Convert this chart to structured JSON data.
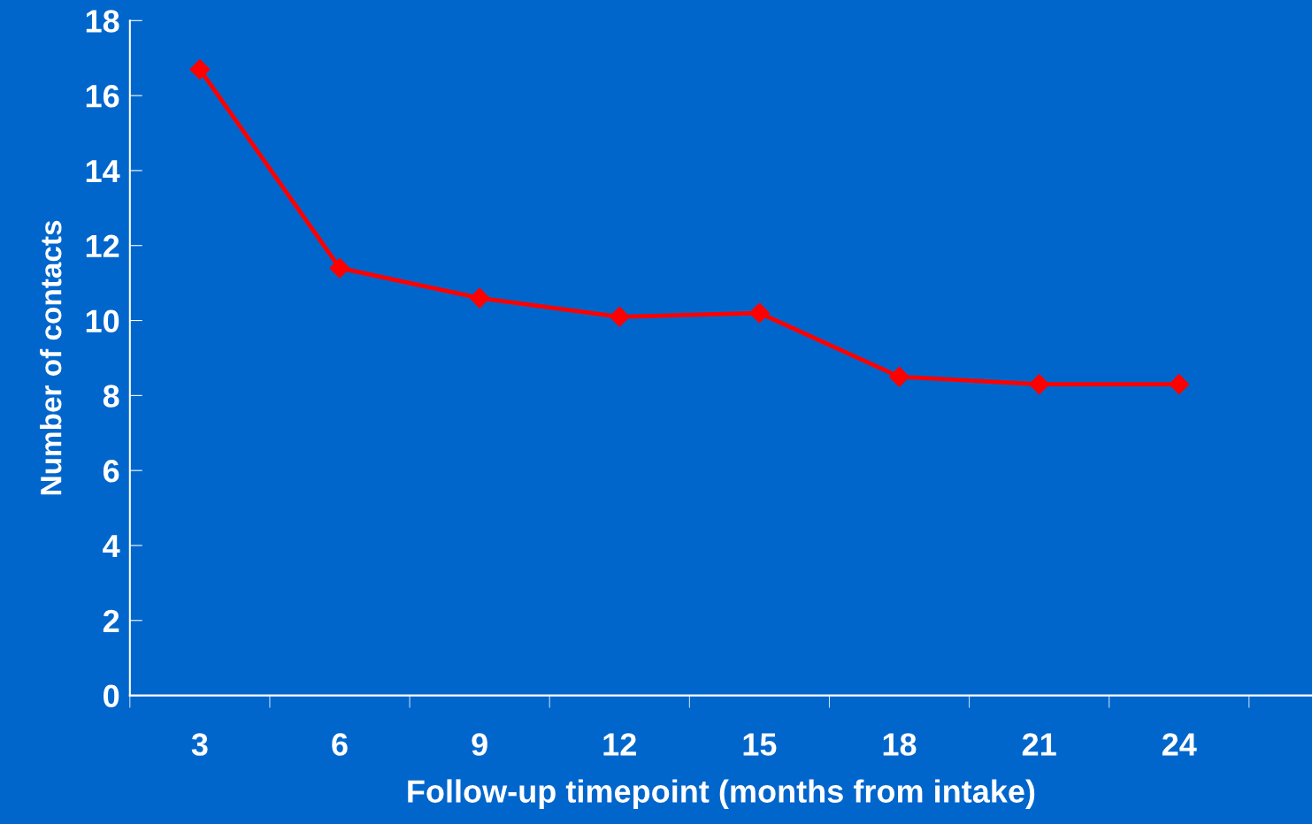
{
  "chart_data": {
    "type": "line",
    "xlabel": "Follow-up timepoint (months from intake)",
    "ylabel": "Number of contacts",
    "categories": [
      "3",
      "6",
      "9",
      "12",
      "15",
      "18",
      "21",
      "24"
    ],
    "series": [
      {
        "color": "#ff0000",
        "values": [
          16.7,
          11.4,
          10.6,
          10.1,
          10.2,
          8.5,
          8.3,
          8.3
        ]
      }
    ],
    "ylim": [
      0,
      18
    ],
    "yticks": [
      0,
      2,
      4,
      6,
      8,
      10,
      12,
      14,
      16,
      18
    ],
    "marker": "diamond",
    "line_style": "solid",
    "grid": false,
    "legend": false
  }
}
